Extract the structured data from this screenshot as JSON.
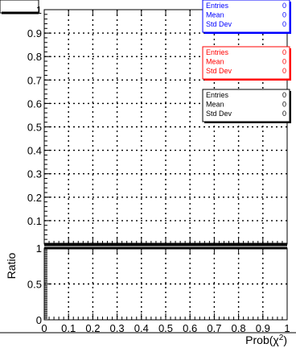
{
  "chart_data": [
    {
      "panel": "upper",
      "type": "line",
      "title": "",
      "xlabel": "",
      "ylabel": "",
      "xlim": [
        0,
        1
      ],
      "ylim": [
        0,
        1
      ],
      "x_ticks": [
        0,
        0.1,
        0.2,
        0.3,
        0.4,
        0.5,
        0.6,
        0.7,
        0.8,
        0.9,
        1
      ],
      "y_ticks": [
        "0.1",
        "0.2",
        "0.3",
        "0.4",
        "0.5",
        "0.6",
        "0.7",
        "0.8",
        "0.9",
        "1"
      ],
      "grid": true,
      "series": [],
      "stat_boxes": [
        {
          "color": "#0000ff",
          "rows": [
            {
              "label": "Entries",
              "value": "0"
            },
            {
              "label": "Mean",
              "value": "0"
            },
            {
              "label": "Std Dev",
              "value": "0"
            }
          ]
        },
        {
          "color": "#ff0000",
          "rows": [
            {
              "label": "Entries",
              "value": "0"
            },
            {
              "label": "Mean",
              "value": "0"
            },
            {
              "label": "Std Dev",
              "value": "0"
            }
          ]
        },
        {
          "color": "#000000",
          "rows": [
            {
              "label": "Entries",
              "value": "0"
            },
            {
              "label": "Mean",
              "value": "0"
            },
            {
              "label": "Std Dev",
              "value": "0"
            }
          ]
        }
      ]
    },
    {
      "panel": "lower",
      "type": "line",
      "title": "",
      "xlabel": "Prob(χ²)",
      "ylabel": "Ratio",
      "xlim": [
        0,
        1
      ],
      "ylim": [
        0,
        1
      ],
      "x_ticks": [
        "0",
        "0.1",
        "0.2",
        "0.3",
        "0.4",
        "0.5",
        "0.6",
        "0.7",
        "0.8",
        "0.9",
        "1"
      ],
      "y_ticks": [
        "0",
        "0.5",
        "1"
      ],
      "grid": true,
      "series": []
    }
  ]
}
